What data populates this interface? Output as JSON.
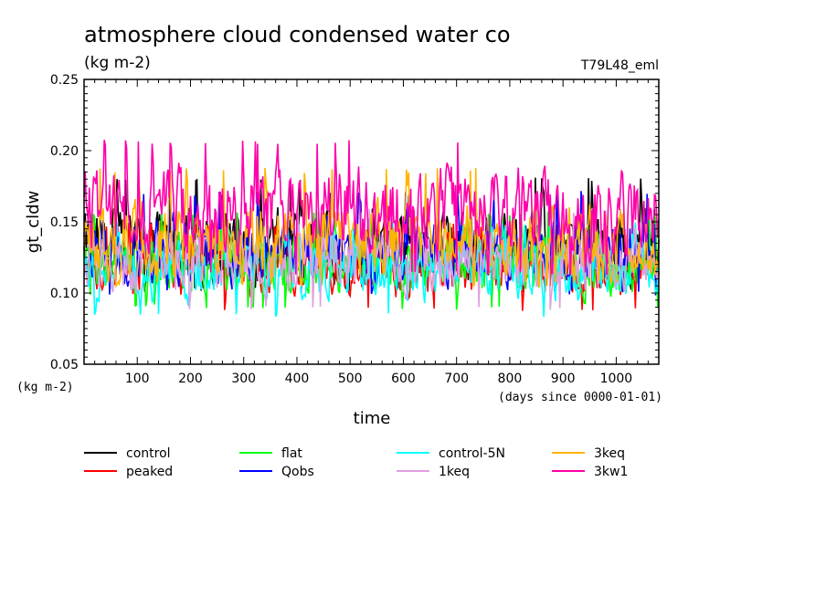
{
  "chart_data": {
    "type": "line",
    "title": "atmosphere cloud condensed water co",
    "subtitle": "(kg m-2)",
    "run_label": "T79L48_eml",
    "ylabel": "gt_cldw",
    "y_unit_label": "(kg m-2)",
    "xlabel": "time",
    "x_unit_label": "(days since 0000-01-01)",
    "xlim": [
      0,
      1080
    ],
    "ylim": [
      0.05,
      0.25
    ],
    "x_ticks": [
      100,
      200,
      300,
      400,
      500,
      600,
      700,
      800,
      900,
      1000
    ],
    "y_ticks": [
      "0.05",
      "0.10",
      "0.15",
      "0.20",
      "0.25"
    ],
    "grid": false,
    "legend_position": "bottom",
    "series": [
      {
        "name": "control",
        "color": "#000000",
        "mean": 0.133,
        "min": 0.1,
        "max": 0.182
      },
      {
        "name": "peaked",
        "color": "#ff0000",
        "mean": 0.118,
        "min": 0.086,
        "max": 0.15
      },
      {
        "name": "flat",
        "color": "#00ff00",
        "mean": 0.12,
        "min": 0.088,
        "max": 0.158
      },
      {
        "name": "Qobs",
        "color": "#0000ff",
        "mean": 0.13,
        "min": 0.098,
        "max": 0.172
      },
      {
        "name": "control-5N",
        "color": "#00ffff",
        "mean": 0.116,
        "min": 0.082,
        "max": 0.15
      },
      {
        "name": "1keq",
        "color": "#e0a0e0",
        "mean": 0.124,
        "min": 0.088,
        "max": 0.16
      },
      {
        "name": "3keq",
        "color": "#ffb400",
        "mean": 0.136,
        "min": 0.104,
        "max": 0.188
      },
      {
        "name": "3kw1",
        "color": "#ff00aa",
        "mean": 0.158,
        "min": 0.112,
        "max": 0.208
      }
    ]
  }
}
